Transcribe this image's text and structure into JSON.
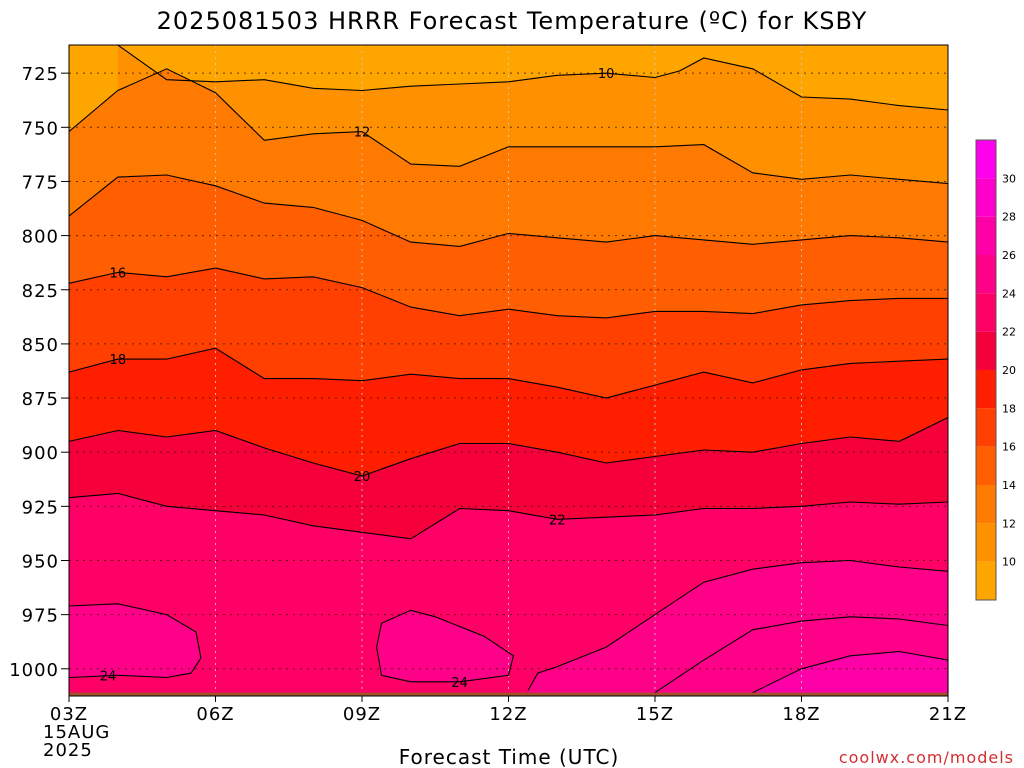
{
  "chart_data": {
    "type": "contour",
    "title": "2025081503 HRRR Forecast Temperature (ºC) for KSBY",
    "xlabel": "Forecast Time (UTC)",
    "ylabel": "",
    "credit": "coolwx.com/models",
    "x_ticks": [
      {
        "hour": 0,
        "label": "03Z",
        "sub": [
          "15AUG",
          "2025"
        ]
      },
      {
        "hour": 3,
        "label": "06Z"
      },
      {
        "hour": 6,
        "label": "09Z"
      },
      {
        "hour": 9,
        "label": "12Z"
      },
      {
        "hour": 12,
        "label": "15Z"
      },
      {
        "hour": 15,
        "label": "18Z"
      },
      {
        "hour": 18,
        "label": "21Z"
      }
    ],
    "xlim": [
      0,
      18
    ],
    "y_ticks": [
      725,
      750,
      775,
      800,
      825,
      850,
      875,
      900,
      925,
      950,
      975,
      1000
    ],
    "ylim_hpa": [
      712,
      1013
    ],
    "surface_pressure_hpa": 1011,
    "colorbar": {
      "ticks": [
        10,
        12,
        14,
        16,
        18,
        20,
        22,
        24,
        26,
        28,
        30
      ],
      "range": [
        8,
        32
      ],
      "bands": [
        {
          "from": 8,
          "to": 10,
          "color": "#FFA500"
        },
        {
          "from": 10,
          "to": 12,
          "color": "#FF9000"
        },
        {
          "from": 12,
          "to": 14,
          "color": "#FF7A00"
        },
        {
          "from": 14,
          "to": 16,
          "color": "#FF5F00"
        },
        {
          "from": 16,
          "to": 18,
          "color": "#FF4000"
        },
        {
          "from": 18,
          "to": 20,
          "color": "#FF1E00"
        },
        {
          "from": 20,
          "to": 22,
          "color": "#F5003A"
        },
        {
          "from": 22,
          "to": 24,
          "color": "#FF0066"
        },
        {
          "from": 24,
          "to": 26,
          "color": "#FF0088"
        },
        {
          "from": 26,
          "to": 28,
          "color": "#FF00A8"
        },
        {
          "from": 28,
          "to": 30,
          "color": "#FF00CC"
        },
        {
          "from": 30,
          "to": 32,
          "color": "#FF00EE"
        }
      ]
    },
    "contours": [
      {
        "level": 10,
        "label_at_hour": 11,
        "points": [
          [
            1.0,
            712
          ],
          [
            2.0,
            728
          ],
          [
            3.0,
            729
          ],
          [
            4.0,
            728
          ],
          [
            5.0,
            732
          ],
          [
            6.0,
            733
          ],
          [
            7.0,
            731
          ],
          [
            8.0,
            730
          ],
          [
            9.0,
            729
          ],
          [
            10.0,
            726
          ],
          [
            11.0,
            725
          ],
          [
            12.0,
            727
          ],
          [
            12.5,
            724
          ],
          [
            13.0,
            718
          ],
          [
            14.0,
            723
          ],
          [
            15.0,
            736
          ],
          [
            16.0,
            737
          ],
          [
            17.0,
            740
          ],
          [
            18.0,
            742
          ]
        ]
      },
      {
        "level": 12,
        "label_at_hour": 6,
        "points": [
          [
            0,
            752
          ],
          [
            1.0,
            733
          ],
          [
            2.0,
            723
          ],
          [
            3.0,
            734
          ],
          [
            4.0,
            756
          ],
          [
            5.0,
            753
          ],
          [
            6.0,
            752
          ],
          [
            7.0,
            767
          ],
          [
            8.0,
            768
          ],
          [
            9.0,
            759
          ],
          [
            10.0,
            759
          ],
          [
            11.0,
            759
          ],
          [
            12.0,
            759
          ],
          [
            13.0,
            758
          ],
          [
            14.0,
            771
          ],
          [
            15.0,
            774
          ],
          [
            16.0,
            772
          ],
          [
            17.0,
            774
          ],
          [
            18.0,
            776
          ]
        ]
      },
      {
        "level": 14,
        "label_at_hour": -1,
        "points": [
          [
            0,
            791
          ],
          [
            1.0,
            773
          ],
          [
            2.0,
            772
          ],
          [
            3.0,
            777
          ],
          [
            4.0,
            785
          ],
          [
            5.0,
            787
          ],
          [
            6.0,
            793
          ],
          [
            7.0,
            803
          ],
          [
            8.0,
            805
          ],
          [
            9.0,
            799
          ],
          [
            10.0,
            801
          ],
          [
            11.0,
            803
          ],
          [
            12.0,
            800
          ],
          [
            13.0,
            802
          ],
          [
            14.0,
            804
          ],
          [
            15.0,
            802
          ],
          [
            16.0,
            800
          ],
          [
            17.0,
            801
          ],
          [
            18.0,
            803
          ]
        ]
      },
      {
        "level": 16,
        "label_at_hour": 1,
        "points": [
          [
            0,
            822
          ],
          [
            1.0,
            817
          ],
          [
            2.0,
            819
          ],
          [
            3.0,
            815
          ],
          [
            4.0,
            820
          ],
          [
            5.0,
            819
          ],
          [
            6.0,
            824
          ],
          [
            7.0,
            833
          ],
          [
            8.0,
            837
          ],
          [
            9.0,
            834
          ],
          [
            10.0,
            837
          ],
          [
            11.0,
            838
          ],
          [
            12.0,
            835
          ],
          [
            13.0,
            835
          ],
          [
            14.0,
            836
          ],
          [
            15.0,
            832
          ],
          [
            16.0,
            830
          ],
          [
            17.0,
            829
          ],
          [
            18.0,
            829
          ]
        ]
      },
      {
        "level": 18,
        "label_at_hour": 1,
        "points": [
          [
            0,
            863
          ],
          [
            1.0,
            857
          ],
          [
            2.0,
            857
          ],
          [
            3.0,
            852
          ],
          [
            4.0,
            866
          ],
          [
            5.0,
            866
          ],
          [
            6.0,
            867
          ],
          [
            7.0,
            864
          ],
          [
            8.0,
            866
          ],
          [
            9.0,
            866
          ],
          [
            10.0,
            870
          ],
          [
            11.0,
            875
          ],
          [
            12.0,
            869
          ],
          [
            13.0,
            863
          ],
          [
            14.0,
            868
          ],
          [
            15.0,
            862
          ],
          [
            16.0,
            859
          ],
          [
            17.0,
            858
          ],
          [
            18.0,
            857
          ]
        ]
      },
      {
        "level": 20,
        "label_at_hour": 6,
        "points": [
          [
            0,
            895
          ],
          [
            1.0,
            890
          ],
          [
            2.0,
            893
          ],
          [
            3.0,
            890
          ],
          [
            4.0,
            898
          ],
          [
            5.0,
            905
          ],
          [
            6.0,
            911
          ],
          [
            7.0,
            903
          ],
          [
            8.0,
            896
          ],
          [
            9.0,
            896
          ],
          [
            10.0,
            900
          ],
          [
            11.0,
            905
          ],
          [
            12.0,
            902
          ],
          [
            13.0,
            899
          ],
          [
            14.0,
            900
          ],
          [
            15.0,
            896
          ],
          [
            16.0,
            893
          ],
          [
            17.0,
            895
          ],
          [
            18.0,
            884
          ]
        ]
      },
      {
        "level": 22,
        "label_at_hour": 10,
        "points": [
          [
            0,
            921
          ],
          [
            1.0,
            919
          ],
          [
            2.0,
            925
          ],
          [
            3.0,
            927
          ],
          [
            4.0,
            929
          ],
          [
            5.0,
            934
          ],
          [
            6.0,
            937
          ],
          [
            7.0,
            940
          ],
          [
            8.0,
            926
          ],
          [
            9.0,
            927
          ],
          [
            10.0,
            931
          ],
          [
            11.0,
            930
          ],
          [
            12.0,
            929
          ],
          [
            13.0,
            926
          ],
          [
            14.0,
            926
          ],
          [
            15.0,
            925
          ],
          [
            16.0,
            923
          ],
          [
            17.0,
            924
          ],
          [
            18.0,
            923
          ]
        ]
      },
      {
        "level": 24,
        "closed": false,
        "label_at_hour": -1,
        "points": [
          [
            12,
            1011
          ],
          [
            13.0,
            996
          ],
          [
            14.0,
            982
          ],
          [
            15.0,
            978
          ],
          [
            16.0,
            976
          ],
          [
            17.0,
            977
          ],
          [
            18.0,
            980
          ]
        ]
      },
      {
        "level": 24,
        "closed": false,
        "label_at_hour": -1,
        "points": [
          [
            9.4,
            1010
          ],
          [
            9.6,
            1002
          ],
          [
            10.0,
            999
          ],
          [
            11.0,
            990
          ],
          [
            12.0,
            975
          ],
          [
            13.0,
            960
          ],
          [
            14.0,
            954
          ],
          [
            15.0,
            951
          ],
          [
            16.0,
            950
          ],
          [
            17.0,
            953
          ],
          [
            18.0,
            955
          ]
        ]
      },
      {
        "level": 24,
        "closed": false,
        "label_at_hour": 0.8,
        "points": [
          [
            0,
            1004
          ],
          [
            1.0,
            1003
          ],
          [
            2.0,
            1004
          ],
          [
            2.5,
            1002
          ],
          [
            2.7,
            995
          ],
          [
            2.6,
            983
          ],
          [
            2.0,
            975
          ],
          [
            1.0,
            970
          ],
          [
            0,
            971
          ]
        ]
      },
      {
        "level": 24,
        "closed": true,
        "label_at_hour": 8,
        "points": [
          [
            6.4,
            1003
          ],
          [
            7.0,
            1006
          ],
          [
            8.0,
            1006
          ],
          [
            9.0,
            1003
          ],
          [
            9.1,
            994
          ],
          [
            8.5,
            985
          ],
          [
            7.5,
            976
          ],
          [
            7.0,
            973
          ],
          [
            6.4,
            979
          ],
          [
            6.3,
            990
          ]
        ]
      },
      {
        "level": 26,
        "closed": false,
        "label_at_hour": -1,
        "points": [
          [
            14.0,
            1011
          ],
          [
            15.0,
            1000
          ],
          [
            16.0,
            994
          ],
          [
            17.0,
            992
          ],
          [
            18.0,
            996
          ],
          [
            18.0,
            1011
          ]
        ]
      }
    ]
  }
}
